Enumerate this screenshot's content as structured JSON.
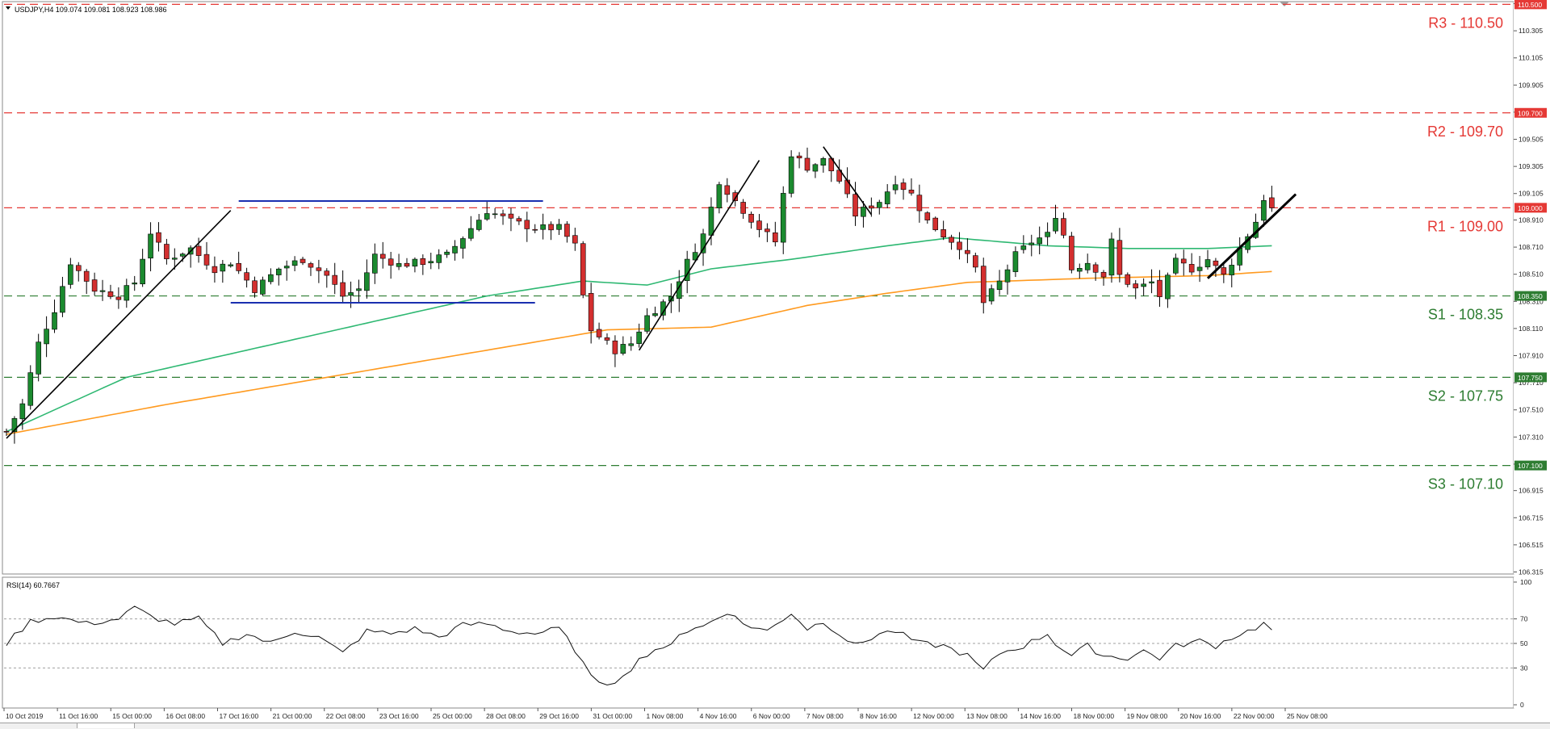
{
  "chart_data": [
    {
      "type": "candlestick",
      "symbol_header": "USDJPY,H4  109.074 109.081 108.923 108.986",
      "x_tick_labels": [
        "10 Oct 2019",
        "11 Oct 16:00",
        "15 Oct 00:00",
        "16 Oct 08:00",
        "17 Oct 16:00",
        "21 Oct 00:00",
        "22 Oct 08:00",
        "23 Oct 16:00",
        "25 Oct 00:00",
        "28 Oct 08:00",
        "29 Oct 16:00",
        "31 Oct 00:00",
        "1 Nov 08:00",
        "4 Nov 16:00",
        "6 Nov 00:00",
        "7 Nov 08:00",
        "8 Nov 16:00",
        "12 Nov 00:00",
        "13 Nov 08:00",
        "14 Nov 16:00",
        "18 Nov 00:00",
        "19 Nov 08:00",
        "20 Nov 16:00",
        "22 Nov 00:00",
        "25 Nov 08:00"
      ],
      "y_tick_labels": [
        "110.505",
        "110.305",
        "110.105",
        "109.905",
        "109.705",
        "109.505",
        "109.305",
        "109.105",
        "108.910",
        "108.710",
        "108.510",
        "108.310",
        "108.110",
        "107.910",
        "107.710",
        "107.510",
        "107.310",
        "107.110",
        "106.915",
        "106.715",
        "106.515",
        "106.315"
      ],
      "ylim": [
        106.3,
        110.52
      ],
      "price_tags": [
        {
          "value": 110.5,
          "label": "110.500",
          "color": "#e53935"
        },
        {
          "value": 109.7,
          "label": "109.700",
          "color": "#e53935"
        },
        {
          "value": 109.0,
          "label": "109.000",
          "color": "#e53935"
        },
        {
          "value": 108.35,
          "label": "108.350",
          "color": "#2e7d32"
        },
        {
          "value": 107.75,
          "label": "107.750",
          "color": "#2e7d32"
        },
        {
          "value": 107.1,
          "label": "107.100",
          "color": "#2e7d32"
        }
      ],
      "levels": [
        {
          "name": "R3",
          "value": 110.5,
          "label": "R3 - 110.50",
          "color": "#e53935"
        },
        {
          "name": "R2",
          "value": 109.7,
          "label": "R2 - 109.70",
          "color": "#e53935"
        },
        {
          "name": "R1",
          "value": 109.0,
          "label": "R1 - 109.00",
          "color": "#e53935"
        },
        {
          "name": "S1",
          "value": 108.35,
          "label": "S1 - 108.35",
          "color": "#2e7d32"
        },
        {
          "name": "S2",
          "value": 107.75,
          "label": "S2 - 107.75",
          "color": "#2e7d32"
        },
        {
          "name": "S3",
          "value": 107.1,
          "label": "S3 - 107.10",
          "color": "#2e7d32"
        }
      ],
      "bull_color": "#1b8a2f",
      "bear_color": "#d32f2f",
      "candle_count": 159,
      "price_path": [
        {
          "i": 0,
          "p": 107.35
        },
        {
          "i": 2,
          "p": 107.55
        },
        {
          "i": 4,
          "p": 108.0
        },
        {
          "i": 6,
          "p": 108.25
        },
        {
          "i": 8,
          "p": 108.6
        },
        {
          "i": 11,
          "p": 108.4
        },
        {
          "i": 14,
          "p": 108.35
        },
        {
          "i": 16,
          "p": 108.45
        },
        {
          "i": 18,
          "p": 108.82
        },
        {
          "i": 20,
          "p": 108.62
        },
        {
          "i": 23,
          "p": 108.7
        },
        {
          "i": 26,
          "p": 108.55
        },
        {
          "i": 28,
          "p": 108.6
        },
        {
          "i": 31,
          "p": 108.4
        },
        {
          "i": 34,
          "p": 108.55
        },
        {
          "i": 37,
          "p": 108.62
        },
        {
          "i": 40,
          "p": 108.5
        },
        {
          "i": 42,
          "p": 108.35
        },
        {
          "i": 44,
          "p": 108.4
        },
        {
          "i": 46,
          "p": 108.65
        },
        {
          "i": 49,
          "p": 108.58
        },
        {
          "i": 52,
          "p": 108.6
        },
        {
          "i": 55,
          "p": 108.65
        },
        {
          "i": 58,
          "p": 108.85
        },
        {
          "i": 60,
          "p": 108.98
        },
        {
          "i": 63,
          "p": 108.9
        },
        {
          "i": 66,
          "p": 108.85
        },
        {
          "i": 69,
          "p": 108.85
        },
        {
          "i": 71,
          "p": 108.72
        },
        {
          "i": 72,
          "p": 108.35
        },
        {
          "i": 73,
          "p": 108.1
        },
        {
          "i": 76,
          "p": 107.95
        },
        {
          "i": 78,
          "p": 108.0
        },
        {
          "i": 80,
          "p": 108.2
        },
        {
          "i": 83,
          "p": 108.35
        },
        {
          "i": 85,
          "p": 108.6
        },
        {
          "i": 87,
          "p": 108.8
        },
        {
          "i": 89,
          "p": 109.2
        },
        {
          "i": 91,
          "p": 109.05
        },
        {
          "i": 94,
          "p": 108.85
        },
        {
          "i": 96,
          "p": 108.75
        },
        {
          "i": 97,
          "p": 109.1
        },
        {
          "i": 98,
          "p": 109.4
        },
        {
          "i": 100,
          "p": 109.3
        },
        {
          "i": 102,
          "p": 109.35
        },
        {
          "i": 104,
          "p": 109.2
        },
        {
          "i": 106,
          "p": 108.95
        },
        {
          "i": 109,
          "p": 109.05
        },
        {
          "i": 111,
          "p": 109.2
        },
        {
          "i": 113,
          "p": 109.1
        },
        {
          "i": 115,
          "p": 108.9
        },
        {
          "i": 117,
          "p": 108.8
        },
        {
          "i": 119,
          "p": 108.72
        },
        {
          "i": 121,
          "p": 108.55
        },
        {
          "i": 122,
          "p": 108.3
        },
        {
          "i": 124,
          "p": 108.45
        },
        {
          "i": 126,
          "p": 108.65
        },
        {
          "i": 128,
          "p": 108.75
        },
        {
          "i": 130,
          "p": 108.8
        },
        {
          "i": 131,
          "p": 108.95
        },
        {
          "i": 132,
          "p": 108.8
        },
        {
          "i": 133,
          "p": 108.55
        },
        {
          "i": 135,
          "p": 108.6
        },
        {
          "i": 137,
          "p": 108.5
        },
        {
          "i": 138,
          "p": 108.75
        },
        {
          "i": 139,
          "p": 108.5
        },
        {
          "i": 141,
          "p": 108.4
        },
        {
          "i": 143,
          "p": 108.45
        },
        {
          "i": 144,
          "p": 108.35
        },
        {
          "i": 146,
          "p": 108.6
        },
        {
          "i": 148,
          "p": 108.55
        },
        {
          "i": 150,
          "p": 108.62
        },
        {
          "i": 152,
          "p": 108.5
        },
        {
          "i": 154,
          "p": 108.7
        },
        {
          "i": 156,
          "p": 108.9
        },
        {
          "i": 157,
          "p": 109.07
        },
        {
          "i": 158,
          "p": 108.99
        }
      ],
      "moving_averages": [
        {
          "color": "#2eb872",
          "points": [
            {
              "i": 0,
              "p": 107.35
            },
            {
              "i": 15,
              "p": 107.75
            },
            {
              "i": 30,
              "p": 107.95
            },
            {
              "i": 45,
              "p": 108.15
            },
            {
              "i": 60,
              "p": 108.35
            },
            {
              "i": 72,
              "p": 108.46
            },
            {
              "i": 80,
              "p": 108.43
            },
            {
              "i": 88,
              "p": 108.55
            },
            {
              "i": 98,
              "p": 108.62
            },
            {
              "i": 110,
              "p": 108.72
            },
            {
              "i": 118,
              "p": 108.78
            },
            {
              "i": 130,
              "p": 108.72
            },
            {
              "i": 140,
              "p": 108.7
            },
            {
              "i": 150,
              "p": 108.7
            },
            {
              "i": 158,
              "p": 108.72
            }
          ]
        },
        {
          "color": "#ff9a1f",
          "points": [
            {
              "i": 0,
              "p": 107.33
            },
            {
              "i": 20,
              "p": 107.55
            },
            {
              "i": 40,
              "p": 107.75
            },
            {
              "i": 60,
              "p": 107.95
            },
            {
              "i": 75,
              "p": 108.1
            },
            {
              "i": 88,
              "p": 108.12
            },
            {
              "i": 100,
              "p": 108.28
            },
            {
              "i": 110,
              "p": 108.37
            },
            {
              "i": 120,
              "p": 108.45
            },
            {
              "i": 135,
              "p": 108.48
            },
            {
              "i": 150,
              "p": 108.5
            },
            {
              "i": 158,
              "p": 108.53
            }
          ]
        }
      ],
      "trendlines": [
        {
          "color": "#000000",
          "from": {
            "i": 0,
            "p": 107.3
          },
          "to": {
            "i": 28,
            "p": 108.98
          }
        },
        {
          "color": "#000000",
          "from": {
            "i": 79,
            "p": 107.95
          },
          "to": {
            "i": 94,
            "p": 109.35
          }
        },
        {
          "color": "#000000",
          "from": {
            "i": 102,
            "p": 109.45
          },
          "to": {
            "i": 108,
            "p": 108.95
          }
        },
        {
          "color": "#000000",
          "from": {
            "i": 150,
            "p": 108.48
          },
          "to": {
            "i": 161,
            "p": 109.1
          }
        }
      ],
      "ranges": [
        {
          "color": "#1a2fb0",
          "from": {
            "i": 29,
            "p": 109.05
          },
          "to": {
            "i": 67,
            "p": 109.05
          }
        },
        {
          "color": "#1a2fb0",
          "from": {
            "i": 28,
            "p": 108.3
          },
          "to": {
            "i": 66,
            "p": 108.3
          }
        }
      ]
    },
    {
      "type": "line",
      "title": "RSI(14) 60.7667",
      "ylim": [
        0,
        100
      ],
      "y_tick_labels": [
        "100",
        "70",
        "50",
        "30",
        "0"
      ],
      "levels": [
        70,
        50,
        30
      ],
      "line_color": "#111111",
      "values_path": [
        {
          "i": 0,
          "p": 50
        },
        {
          "i": 3,
          "p": 68
        },
        {
          "i": 6,
          "p": 72
        },
        {
          "i": 10,
          "p": 66
        },
        {
          "i": 14,
          "p": 70
        },
        {
          "i": 16,
          "p": 79
        },
        {
          "i": 18,
          "p": 72
        },
        {
          "i": 21,
          "p": 66
        },
        {
          "i": 24,
          "p": 70
        },
        {
          "i": 27,
          "p": 50
        },
        {
          "i": 30,
          "p": 58
        },
        {
          "i": 33,
          "p": 50
        },
        {
          "i": 36,
          "p": 60
        },
        {
          "i": 39,
          "p": 55
        },
        {
          "i": 42,
          "p": 42
        },
        {
          "i": 45,
          "p": 60
        },
        {
          "i": 48,
          "p": 58
        },
        {
          "i": 51,
          "p": 62
        },
        {
          "i": 54,
          "p": 55
        },
        {
          "i": 57,
          "p": 65
        },
        {
          "i": 60,
          "p": 66
        },
        {
          "i": 63,
          "p": 60
        },
        {
          "i": 66,
          "p": 58
        },
        {
          "i": 69,
          "p": 62
        },
        {
          "i": 71,
          "p": 45
        },
        {
          "i": 73,
          "p": 22
        },
        {
          "i": 75,
          "p": 18
        },
        {
          "i": 77,
          "p": 22
        },
        {
          "i": 79,
          "p": 38
        },
        {
          "i": 82,
          "p": 45
        },
        {
          "i": 84,
          "p": 58
        },
        {
          "i": 87,
          "p": 64
        },
        {
          "i": 90,
          "p": 76
        },
        {
          "i": 92,
          "p": 66
        },
        {
          "i": 95,
          "p": 60
        },
        {
          "i": 98,
          "p": 75
        },
        {
          "i": 100,
          "p": 62
        },
        {
          "i": 102,
          "p": 68
        },
        {
          "i": 104,
          "p": 58
        },
        {
          "i": 106,
          "p": 48
        },
        {
          "i": 109,
          "p": 58
        },
        {
          "i": 111,
          "p": 60
        },
        {
          "i": 114,
          "p": 50
        },
        {
          "i": 117,
          "p": 48
        },
        {
          "i": 120,
          "p": 40
        },
        {
          "i": 122,
          "p": 28
        },
        {
          "i": 124,
          "p": 42
        },
        {
          "i": 127,
          "p": 48
        },
        {
          "i": 130,
          "p": 58
        },
        {
          "i": 131,
          "p": 50
        },
        {
          "i": 133,
          "p": 40
        },
        {
          "i": 135,
          "p": 48
        },
        {
          "i": 137,
          "p": 40
        },
        {
          "i": 140,
          "p": 38
        },
        {
          "i": 142,
          "p": 44
        },
        {
          "i": 144,
          "p": 38
        },
        {
          "i": 146,
          "p": 48
        },
        {
          "i": 149,
          "p": 52
        },
        {
          "i": 151,
          "p": 48
        },
        {
          "i": 153,
          "p": 55
        },
        {
          "i": 155,
          "p": 60
        },
        {
          "i": 157,
          "p": 66
        },
        {
          "i": 158,
          "p": 61
        }
      ]
    }
  ]
}
